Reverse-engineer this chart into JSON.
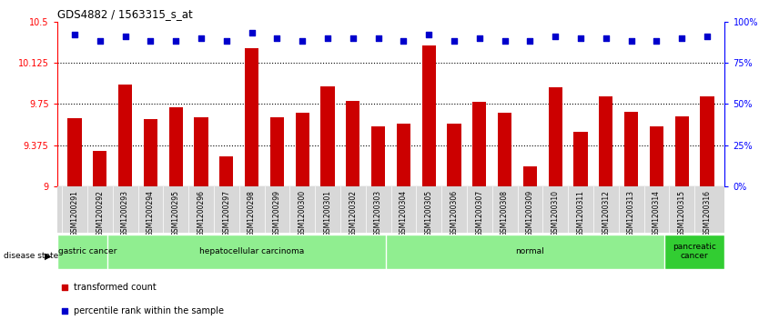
{
  "title": "GDS4882 / 1563315_s_at",
  "samples": [
    "GSM1200291",
    "GSM1200292",
    "GSM1200293",
    "GSM1200294",
    "GSM1200295",
    "GSM1200296",
    "GSM1200297",
    "GSM1200298",
    "GSM1200299",
    "GSM1200300",
    "GSM1200301",
    "GSM1200302",
    "GSM1200303",
    "GSM1200304",
    "GSM1200305",
    "GSM1200306",
    "GSM1200307",
    "GSM1200308",
    "GSM1200309",
    "GSM1200310",
    "GSM1200311",
    "GSM1200312",
    "GSM1200313",
    "GSM1200314",
    "GSM1200315",
    "GSM1200316"
  ],
  "bar_values": [
    9.62,
    9.32,
    9.93,
    9.61,
    9.72,
    9.63,
    9.27,
    10.26,
    9.63,
    9.67,
    9.91,
    9.78,
    9.55,
    9.57,
    10.28,
    9.57,
    9.77,
    9.67,
    9.18,
    9.9,
    9.5,
    9.82,
    9.68,
    9.55,
    9.64,
    9.82
  ],
  "percentile_values": [
    92,
    88,
    91,
    88,
    88,
    90,
    88,
    93,
    90,
    88,
    90,
    90,
    90,
    88,
    92,
    88,
    90,
    88,
    88,
    91,
    90,
    90,
    88,
    88,
    90,
    91
  ],
  "bar_color": "#CC0000",
  "percentile_color": "#0000CC",
  "ylim_left": [
    9.0,
    10.5
  ],
  "ylim_right": [
    0,
    100
  ],
  "yticks_left": [
    9.0,
    9.375,
    9.75,
    10.125,
    10.5
  ],
  "ytick_labels_left": [
    "9",
    "9.375",
    "9.75",
    "10.125",
    "10.5"
  ],
  "yticks_right": [
    0,
    25,
    50,
    75,
    100
  ],
  "ytick_labels_right": [
    "0%",
    "25%",
    "50%",
    "75%",
    "100%"
  ],
  "gridlines": [
    9.375,
    9.75,
    10.125
  ],
  "group_configs": [
    {
      "label": "gastric cancer",
      "start": 0,
      "end": 2,
      "color": "#90EE90",
      "dark": false
    },
    {
      "label": "hepatocellular carcinoma",
      "start": 2,
      "end": 13,
      "color": "#90EE90",
      "dark": false
    },
    {
      "label": "normal",
      "start": 13,
      "end": 24,
      "color": "#90EE90",
      "dark": false
    },
    {
      "label": "pancreatic\ncancer",
      "start": 24,
      "end": 26,
      "color": "#32CD32",
      "dark": true
    }
  ],
  "legend_items": [
    {
      "label": "transformed count",
      "color": "#CC0000"
    },
    {
      "label": "percentile rank within the sample",
      "color": "#0000CC"
    }
  ]
}
